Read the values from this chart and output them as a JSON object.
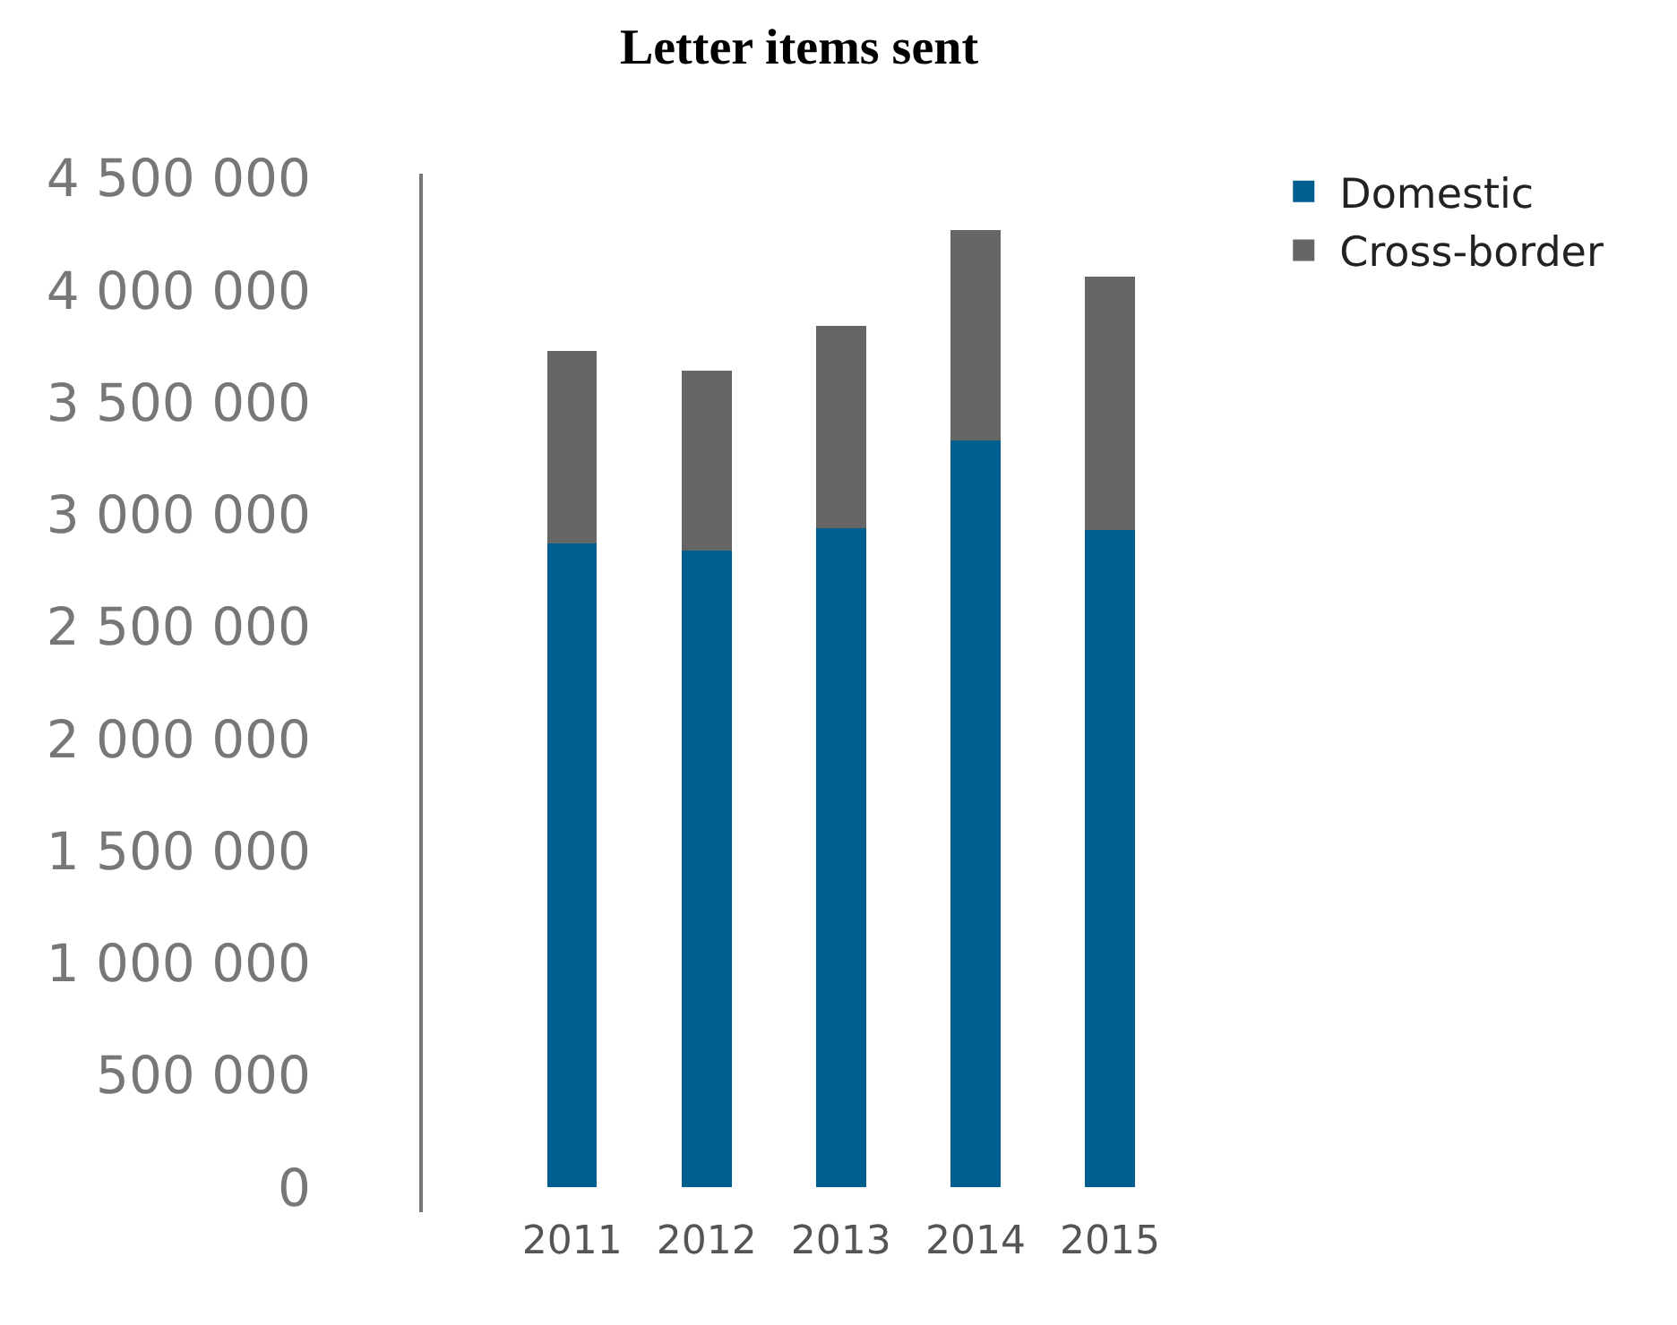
{
  "chart_data": {
    "type": "bar",
    "title": "Letter items sent",
    "categories": [
      "2011",
      "2012",
      "2013",
      "2014",
      "2015"
    ],
    "stacked": true,
    "legend": "top right",
    "grid": false,
    "series": [
      {
        "name": "Domestic",
        "color": "#005f8f",
        "values": [
          2870000,
          2840000,
          2940000,
          3330000,
          2930000
        ]
      },
      {
        "name": "Cross-border",
        "color": "#666666",
        "values": [
          860000,
          800000,
          900000,
          940000,
          1130000
        ]
      }
    ],
    "ylim": [
      -110000,
      4520000
    ],
    "yticks": [
      0,
      {
        "value": 500000,
        "label": "500 000"
      },
      {
        "value": 1000000,
        "label": "1 000 000"
      },
      {
        "value": 1500000,
        "label": "1 500 000"
      },
      {
        "value": 2000000,
        "label": "2 000 000"
      },
      {
        "value": 2500000,
        "label": "2 500 000"
      },
      {
        "value": 3000000,
        "label": "3 000 000"
      },
      {
        "value": 3500000,
        "label": "3 500 000"
      },
      {
        "value": 4000000,
        "label": "4 000 000"
      },
      {
        "value": 4500000,
        "label": "4 500 000"
      }
    ]
  }
}
